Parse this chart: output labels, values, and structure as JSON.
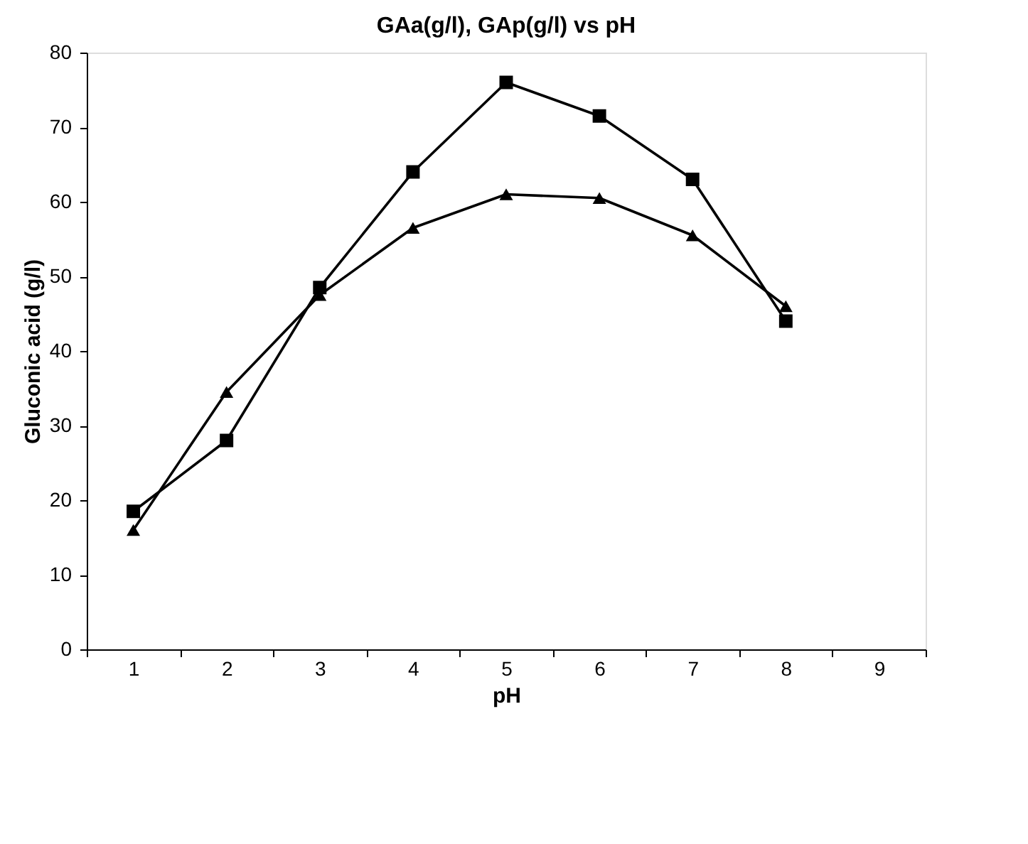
{
  "chart_data": {
    "type": "line",
    "title": "GAa(g/l), GAp(g/l) vs pH",
    "xlabel": "pH",
    "ylabel": "Gluconic acid (g/l)",
    "categories": [
      "1",
      "2",
      "3",
      "4",
      "5",
      "6",
      "7",
      "8",
      "9"
    ],
    "series": [
      {
        "color": "#000000",
        "marker": "square",
        "values": [
          18.5,
          28,
          48.5,
          64,
          76,
          71.5,
          63,
          44,
          null
        ]
      },
      {
        "color": "#000000",
        "marker": "triangle",
        "values": [
          16,
          34.5,
          47.5,
          56.5,
          61,
          60.5,
          55.5,
          46,
          null
        ]
      }
    ],
    "ylim": [
      0,
      80
    ],
    "yticks": [
      0,
      10,
      20,
      30,
      40,
      50,
      60,
      70,
      80
    ],
    "grid": false,
    "line_style": "solid"
  }
}
